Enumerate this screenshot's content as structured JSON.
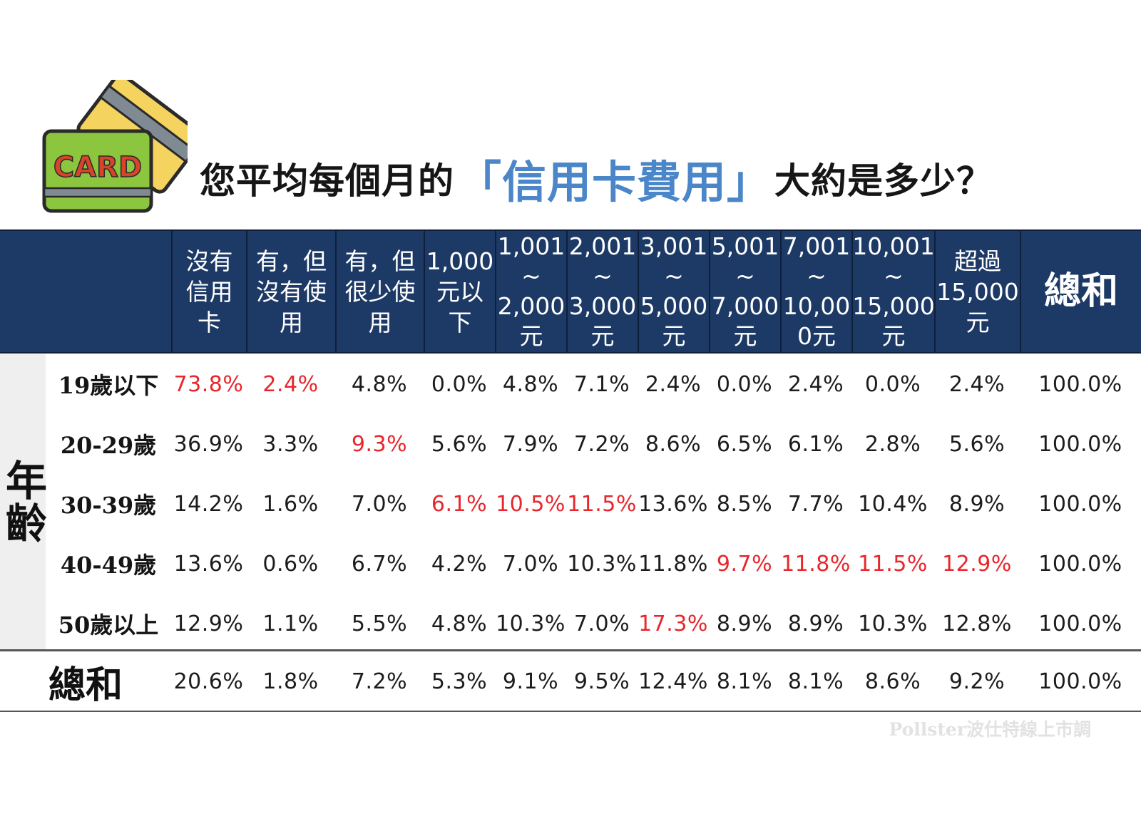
{
  "header": {
    "card_label": "CARD",
    "title_before": "您平均每個月的",
    "title_highlight": "「信用卡費用」",
    "title_after": "大約是多少？"
  },
  "chart_data": {
    "type": "table",
    "row_group_label": "年齡",
    "columns": [
      {
        "label": "沒有\n信用\n卡"
      },
      {
        "label": "有，但\n沒有使\n用"
      },
      {
        "label": "有，但\n很少使\n用"
      },
      {
        "label": "1,000\n元以\n下"
      },
      {
        "label": "1,001\n~\n2,000\n元"
      },
      {
        "label": "2,001\n~\n3,000\n元"
      },
      {
        "label": "3,001\n~\n5,000\n元"
      },
      {
        "label": "5,001\n~\n7,000\n元"
      },
      {
        "label": "7,001\n~\n10,00\n0元"
      },
      {
        "label": "10,001\n~\n15,000\n元"
      },
      {
        "label": "超過\n15,000\n元"
      },
      {
        "label": "總和"
      }
    ],
    "rows": [
      {
        "label": "19歲以下",
        "values": [
          "73.8%",
          "2.4%",
          "4.8%",
          "0.0%",
          "4.8%",
          "7.1%",
          "2.4%",
          "0.0%",
          "2.4%",
          "0.0%",
          "2.4%",
          "100.0%"
        ],
        "highlight": [
          0,
          1
        ]
      },
      {
        "label": "20-29歲",
        "values": [
          "36.9%",
          "3.3%",
          "9.3%",
          "5.6%",
          "7.9%",
          "7.2%",
          "8.6%",
          "6.5%",
          "6.1%",
          "2.8%",
          "5.6%",
          "100.0%"
        ],
        "highlight": [
          2
        ]
      },
      {
        "label": "30-39歲",
        "values": [
          "14.2%",
          "1.6%",
          "7.0%",
          "6.1%",
          "10.5%",
          "11.5%",
          "13.6%",
          "8.5%",
          "7.7%",
          "10.4%",
          "8.9%",
          "100.0%"
        ],
        "highlight": [
          3,
          4,
          5
        ]
      },
      {
        "label": "40-49歲",
        "values": [
          "13.6%",
          "0.6%",
          "6.7%",
          "4.2%",
          "7.0%",
          "10.3%",
          "11.8%",
          "9.7%",
          "11.8%",
          "11.5%",
          "12.9%",
          "100.0%"
        ],
        "highlight": [
          7,
          8,
          9,
          10
        ]
      },
      {
        "label": "50歲以上",
        "values": [
          "12.9%",
          "1.1%",
          "5.5%",
          "4.8%",
          "10.3%",
          "7.0%",
          "17.3%",
          "8.9%",
          "8.9%",
          "10.3%",
          "12.8%",
          "100.0%"
        ],
        "highlight": [
          6
        ]
      }
    ],
    "total_row": {
      "label": "總和",
      "values": [
        "20.6%",
        "1.8%",
        "7.2%",
        "5.3%",
        "9.1%",
        "9.5%",
        "12.4%",
        "8.1%",
        "8.1%",
        "8.6%",
        "9.2%",
        "100.0%"
      ]
    },
    "colors": {
      "header_bg": "#1d3a66",
      "highlight": "#e8262c",
      "title_highlight": "#4a86c8"
    }
  },
  "watermark": "Pollster波仕特線上市調"
}
